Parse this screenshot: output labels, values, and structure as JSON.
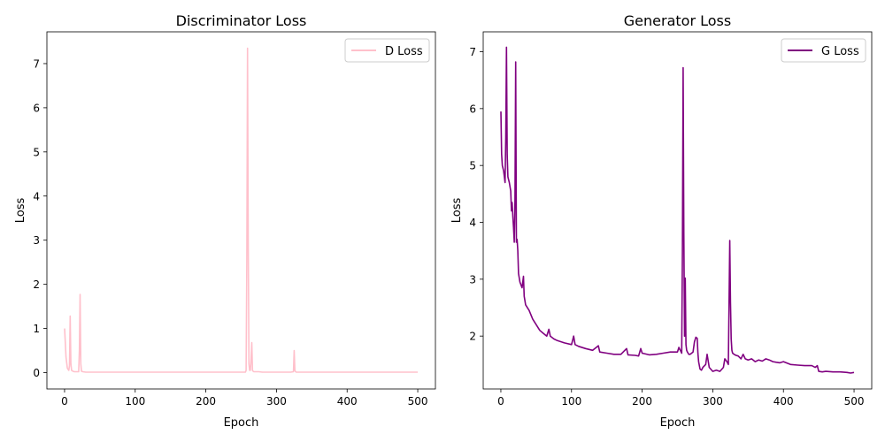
{
  "chart_data": [
    {
      "type": "line",
      "title": "Discriminator Loss",
      "xlabel": "Epoch",
      "ylabel": "Loss",
      "xlim": [
        -25,
        525
      ],
      "ylim": [
        -0.37,
        7.72
      ],
      "xticks": [
        0,
        100,
        200,
        300,
        400,
        500
      ],
      "yticks": [
        0,
        1,
        2,
        3,
        4,
        5,
        6,
        7
      ],
      "grid": false,
      "legend_position": "top-right",
      "series": [
        {
          "name": "D Loss",
          "color": "#ffc0cb",
          "x": [
            0,
            2,
            4,
            6,
            7,
            8,
            9,
            10,
            12,
            14,
            16,
            18,
            20,
            21,
            22,
            23,
            24,
            26,
            30,
            40,
            60,
            100,
            150,
            200,
            250,
            256,
            257,
            258,
            259,
            260,
            261,
            262,
            263,
            264,
            265,
            266,
            267,
            268,
            270,
            275,
            280,
            300,
            320,
            324,
            325,
            326,
            327,
            328,
            330,
            350,
            400,
            450,
            500
          ],
          "y": [
            1.0,
            0.35,
            0.1,
            0.05,
            0.15,
            1.28,
            0.2,
            0.05,
            0.03,
            0.02,
            0.02,
            0.02,
            0.02,
            0.5,
            1.77,
            0.2,
            0.03,
            0.02,
            0.01,
            0.01,
            0.01,
            0.01,
            0.01,
            0.01,
            0.01,
            0.01,
            0.05,
            2.5,
            7.35,
            3.0,
            0.2,
            0.05,
            0.05,
            0.3,
            0.68,
            0.05,
            0.03,
            0.02,
            0.02,
            0.02,
            0.01,
            0.01,
            0.01,
            0.02,
            0.5,
            0.05,
            0.02,
            0.01,
            0.01,
            0.01,
            0.01,
            0.01,
            0.01
          ]
        }
      ]
    },
    {
      "type": "line",
      "title": "Generator Loss",
      "xlabel": "Epoch",
      "ylabel": "Loss",
      "xlim": [
        -25,
        525
      ],
      "ylim": [
        1.07,
        7.35
      ],
      "xticks": [
        0,
        100,
        200,
        300,
        400,
        500
      ],
      "yticks": [
        2,
        3,
        4,
        5,
        6,
        7
      ],
      "grid": false,
      "legend_position": "top-right",
      "series": [
        {
          "name": "G Loss",
          "color": "#800080",
          "x": [
            0,
            1,
            2,
            4,
            6,
            7,
            8,
            9,
            10,
            11,
            12,
            14,
            15,
            16,
            17,
            18,
            19,
            20,
            21,
            22,
            23,
            24,
            25,
            27,
            30,
            32,
            33,
            35,
            40,
            45,
            50,
            55,
            60,
            65,
            68,
            70,
            75,
            80,
            90,
            100,
            103,
            105,
            110,
            120,
            130,
            138,
            140,
            150,
            160,
            170,
            178,
            180,
            190,
            195,
            198,
            200,
            210,
            220,
            230,
            240,
            250,
            252,
            254,
            256,
            257,
            258,
            259,
            260,
            261,
            262,
            263,
            264,
            265,
            266,
            268,
            270,
            272,
            274,
            276,
            278,
            279,
            280,
            282,
            284,
            286,
            290,
            292,
            295,
            300,
            305,
            310,
            315,
            317,
            320,
            322,
            323,
            324,
            325,
            326,
            327,
            328,
            330,
            333,
            336,
            340,
            343,
            346,
            350,
            355,
            360,
            365,
            370,
            375,
            380,
            385,
            390,
            395,
            400,
            410,
            420,
            430,
            440,
            445,
            448,
            450,
            455,
            460,
            470,
            480,
            490,
            495,
            500
          ],
          "y": [
            5.95,
            5.2,
            5.0,
            4.9,
            4.7,
            5.5,
            7.08,
            5.2,
            4.8,
            4.75,
            4.7,
            4.55,
            4.2,
            4.35,
            4.1,
            3.9,
            3.65,
            4.4,
            6.82,
            3.65,
            3.7,
            3.5,
            3.1,
            2.95,
            2.85,
            3.05,
            2.7,
            2.55,
            2.45,
            2.3,
            2.2,
            2.1,
            2.05,
            2.0,
            2.12,
            2.0,
            1.95,
            1.92,
            1.88,
            1.85,
            2.0,
            1.85,
            1.82,
            1.78,
            1.75,
            1.83,
            1.72,
            1.7,
            1.68,
            1.68,
            1.78,
            1.67,
            1.66,
            1.65,
            1.78,
            1.7,
            1.67,
            1.68,
            1.7,
            1.72,
            1.72,
            1.8,
            1.75,
            1.7,
            3.5,
            6.72,
            3.8,
            2.0,
            3.02,
            1.85,
            1.75,
            1.72,
            1.7,
            1.68,
            1.68,
            1.7,
            1.72,
            1.9,
            1.98,
            1.96,
            1.7,
            1.55,
            1.42,
            1.4,
            1.45,
            1.5,
            1.68,
            1.45,
            1.38,
            1.4,
            1.38,
            1.45,
            1.6,
            1.55,
            1.5,
            2.6,
            3.68,
            2.6,
            1.95,
            1.75,
            1.7,
            1.68,
            1.66,
            1.65,
            1.6,
            1.68,
            1.6,
            1.58,
            1.6,
            1.55,
            1.58,
            1.56,
            1.6,
            1.58,
            1.55,
            1.54,
            1.53,
            1.55,
            1.5,
            1.49,
            1.48,
            1.48,
            1.45,
            1.48,
            1.38,
            1.37,
            1.38,
            1.37,
            1.37,
            1.36,
            1.35,
            1.36
          ]
        }
      ]
    }
  ]
}
